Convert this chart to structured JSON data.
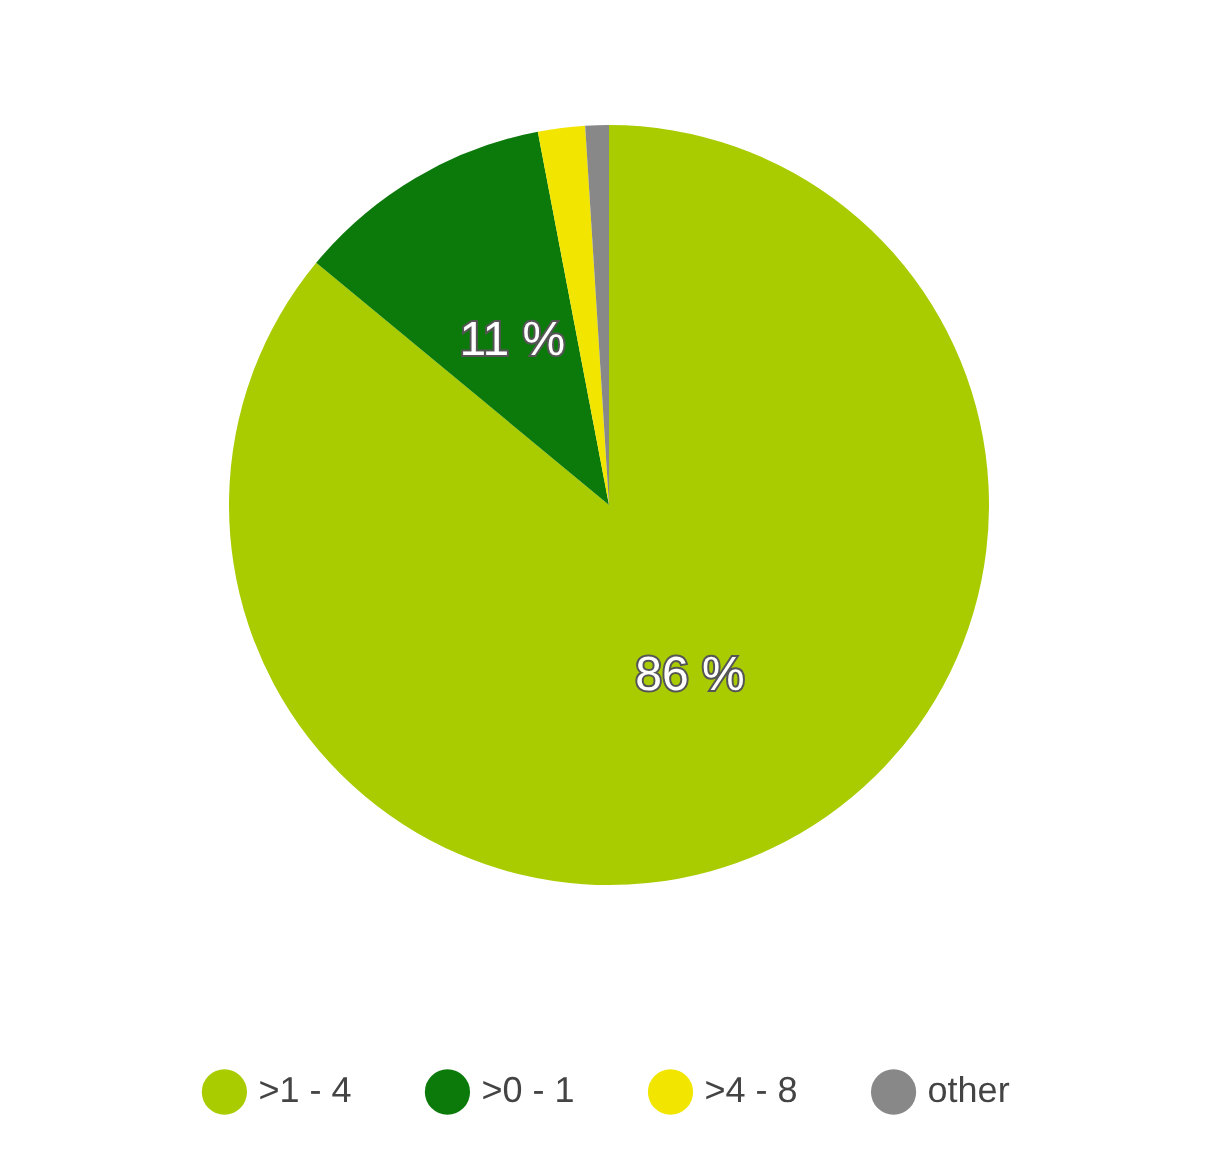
{
  "chart_data": {
    "type": "pie",
    "categories": [
      ">1 - 4",
      ">0 - 1",
      ">4 - 8",
      "other"
    ],
    "values": [
      86,
      11,
      2,
      1
    ],
    "colors": [
      "#a8cc00",
      "#0b7a0b",
      "#f2e600",
      "#888888"
    ],
    "value_labels": [
      "86 %",
      "11 %",
      null,
      null
    ],
    "legend": "bottom"
  }
}
